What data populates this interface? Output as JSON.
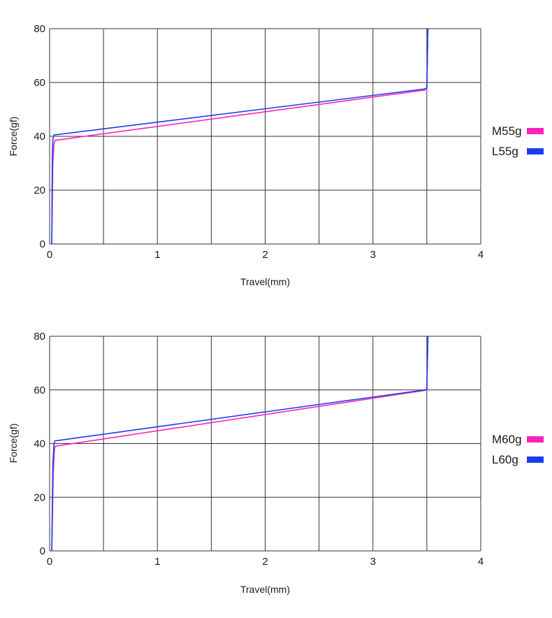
{
  "chart_data": [
    {
      "type": "line",
      "title": "",
      "xlabel": "Travel(mm)",
      "ylabel": "Force(gf)",
      "xlim": [
        0,
        4
      ],
      "ylim": [
        0,
        80
      ],
      "xticks": [
        0,
        1,
        2,
        3,
        4
      ],
      "yticks": [
        0,
        20,
        40,
        60,
        80
      ],
      "grid": true,
      "legend_position": "right",
      "series": [
        {
          "name": "M55g",
          "color": "#ff22bb",
          "points": [
            [
              0.02,
              0
            ],
            [
              0.03,
              30
            ],
            [
              0.04,
              37
            ],
            [
              0.05,
              38.5
            ],
            [
              3.48,
              57.2
            ],
            [
              3.5,
              58
            ],
            [
              3.51,
              80
            ]
          ]
        },
        {
          "name": "L55g",
          "color": "#1a3cf0",
          "points": [
            [
              0.02,
              0
            ],
            [
              0.025,
              32
            ],
            [
              0.03,
              39
            ],
            [
              0.04,
              40.5
            ],
            [
              3.48,
              57.6
            ],
            [
              3.5,
              58
            ],
            [
              3.51,
              80
            ]
          ]
        }
      ]
    },
    {
      "type": "line",
      "title": "",
      "xlabel": "Travel(mm)",
      "ylabel": "Force(gf)",
      "xlim": [
        0,
        4
      ],
      "ylim": [
        0,
        80
      ],
      "xticks": [
        0,
        1,
        2,
        3,
        4
      ],
      "yticks": [
        0,
        20,
        40,
        60,
        80
      ],
      "grid": true,
      "legend_position": "right",
      "series": [
        {
          "name": "M60g",
          "color": "#ff22bb",
          "points": [
            [
              0.02,
              0
            ],
            [
              0.035,
              30
            ],
            [
              0.045,
              37.5
            ],
            [
              0.05,
              39
            ],
            [
              3.48,
              59.8
            ],
            [
              3.5,
              60
            ],
            [
              3.51,
              80
            ]
          ]
        },
        {
          "name": "L60g",
          "color": "#1a3cf0",
          "points": [
            [
              0.02,
              0
            ],
            [
              0.03,
              32
            ],
            [
              0.04,
              40
            ],
            [
              0.05,
              41
            ],
            [
              3.48,
              60
            ],
            [
              3.5,
              60.2
            ],
            [
              3.51,
              80
            ]
          ]
        }
      ]
    }
  ]
}
